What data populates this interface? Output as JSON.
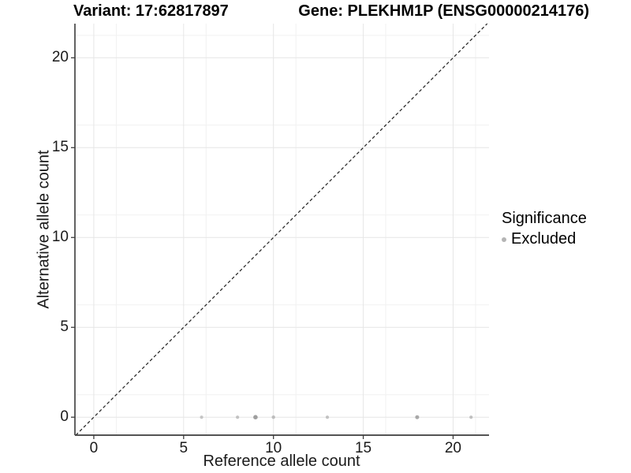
{
  "chart_data": {
    "type": "scatter",
    "title_left": "Variant: 17:62817897",
    "title_right": "Gene: PLEKHM1P (ENSG00000214176)",
    "xlabel": "Reference allele count",
    "ylabel": "Alternative allele count",
    "x_ticks": [
      0,
      5,
      10,
      15,
      20
    ],
    "y_ticks": [
      0,
      5,
      10,
      15,
      20
    ],
    "xlim": [
      -1.05,
      22.0
    ],
    "ylim": [
      -1.0,
      21.9
    ],
    "minor_step": 2.5,
    "grid": {
      "major": true,
      "minor": true,
      "major_color": "#e6e6e6",
      "minor_color": "#f1f1f1"
    },
    "identity_line": {
      "style": "dashed",
      "slope": 1,
      "intercept": 0,
      "color": "#1f1f1f"
    },
    "axis_color": "#3c3c3c",
    "series": [
      {
        "name": "Excluded",
        "color": "#bdbdbd",
        "points": [
          {
            "x": 6,
            "y": 0,
            "r": 2.1,
            "fill": "#c5c5c5"
          },
          {
            "x": 8,
            "y": 0,
            "r": 2.1,
            "fill": "#c2c2c2"
          },
          {
            "x": 9,
            "y": 0,
            "r": 2.8,
            "fill": "#9e9e9e"
          },
          {
            "x": 10,
            "y": 0,
            "r": 2.2,
            "fill": "#bdbdbd"
          },
          {
            "x": 13,
            "y": 0,
            "r": 2.1,
            "fill": "#c2c2c2"
          },
          {
            "x": 18,
            "y": 0,
            "r": 2.5,
            "fill": "#a8a8a8"
          },
          {
            "x": 21,
            "y": 0,
            "r": 2.1,
            "fill": "#c0c0c0"
          }
        ]
      }
    ],
    "legend": {
      "title": "Significance",
      "position": "right",
      "items": [
        {
          "label": "Excluded",
          "color": "#b5b5b5"
        }
      ]
    }
  }
}
